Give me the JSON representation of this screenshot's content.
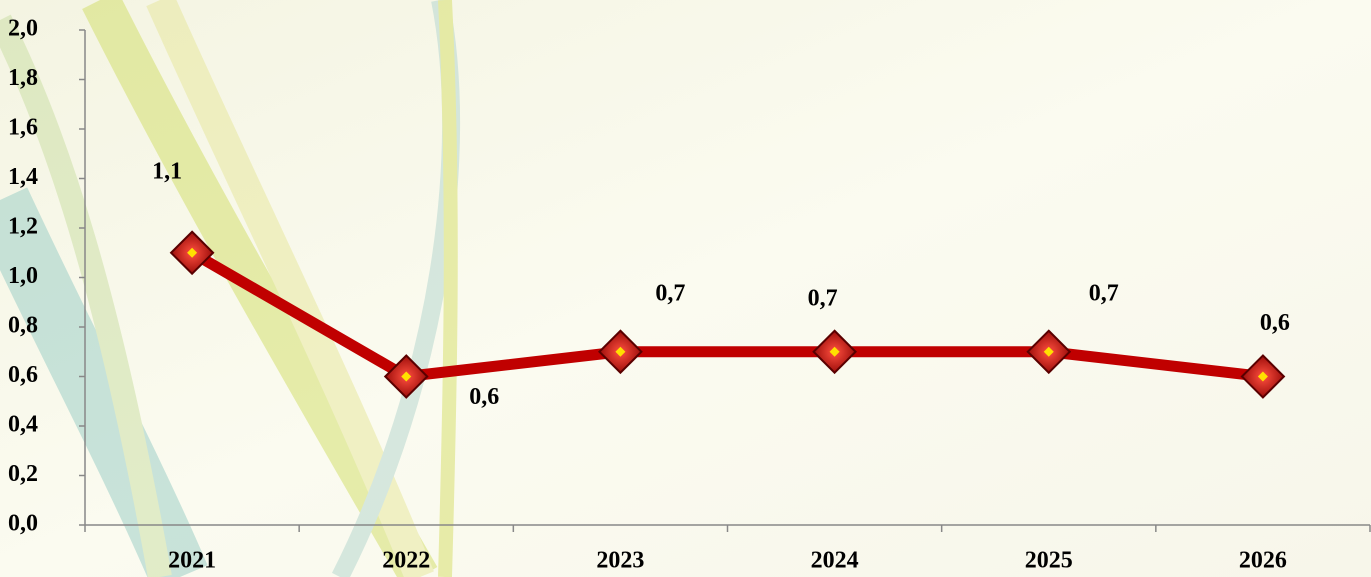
{
  "chart_data": {
    "type": "line",
    "categories": [
      "2021",
      "2022",
      "2023",
      "2024",
      "2025",
      "2026"
    ],
    "values": [
      1.1,
      0.6,
      0.7,
      0.7,
      0.7,
      0.6
    ],
    "value_labels": [
      "1,1",
      "0,6",
      "0,7",
      "0,7",
      "0,7",
      "0,6"
    ],
    "color": "#c00000",
    "ylim": [
      0,
      2
    ],
    "yticks": [
      {
        "value": 0,
        "label": "0,0"
      },
      {
        "value": 0.2,
        "label": "0,2"
      },
      {
        "value": 0.4,
        "label": "0,4"
      },
      {
        "value": 0.6,
        "label": "0,6"
      },
      {
        "value": 0.8,
        "label": "0,8"
      },
      {
        "value": 1,
        "label": "1,0"
      },
      {
        "value": 1.2,
        "label": "1,2"
      },
      {
        "value": 1.4,
        "label": "1,4"
      },
      {
        "value": 1.6,
        "label": "1,6"
      },
      {
        "value": 1.8,
        "label": "1,8"
      },
      {
        "value": 2,
        "label": "2,0"
      }
    ]
  }
}
